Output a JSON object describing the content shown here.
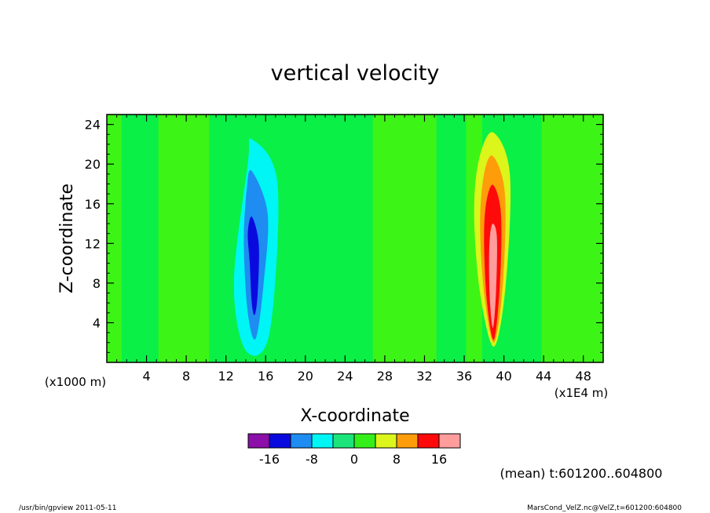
{
  "chart_data": {
    "type": "contour",
    "title": "vertical velocity",
    "xlabel": "X-coordinate",
    "ylabel": "Z-coordinate",
    "x_scale_note": "(x1000 m)",
    "x_scale_note_right": "(x1E4 m)",
    "xlim": [
      0,
      50
    ],
    "ylim": [
      0,
      25
    ],
    "x_ticks": [
      4,
      8,
      12,
      16,
      20,
      24,
      28,
      32,
      36,
      40,
      44,
      48
    ],
    "y_ticks": [
      4,
      8,
      12,
      16,
      20,
      24
    ],
    "colorbar": {
      "colors": [
        "#8b0fa8",
        "#0a0adf",
        "#1e8cf0",
        "#00f5f5",
        "#1be47a",
        "#35ef1a",
        "#dcf51a",
        "#ff9c0a",
        "#ff0a0a",
        "#ff9c9c"
      ],
      "tick_labels": [
        "-16",
        "-8",
        "0",
        "8",
        "16"
      ],
      "tick_at_boundary": [
        1,
        3,
        5,
        7,
        9
      ]
    },
    "background_level_color": "#0af046",
    "light_band_color": "#3cf516",
    "light_bands": [
      [
        0,
        1.5
      ],
      [
        5.2,
        10.3
      ],
      [
        26.8,
        33.2
      ],
      [
        36.2,
        37.8
      ],
      [
        43.8,
        50
      ]
    ],
    "features": [
      {
        "name": "downdraft",
        "center_x": 14.8,
        "levels": [
          {
            "color": "#00f5f5",
            "x": [
              14.6,
              17.2,
              16.4,
              14.0,
              12.8,
              14.2,
              14.6
            ],
            "y": [
              22.5,
              18.0,
              3.0,
              1.2,
              8.0,
              20.0,
              22.5
            ]
          },
          {
            "color": "#1e8cf0",
            "x": [
              14.6,
              16.2,
              15.8,
              15.0,
              14.2,
              13.8,
              14.1,
              14.6
            ],
            "y": [
              19.3,
              15.0,
              8.0,
              2.4,
              5.0,
              12.0,
              17.5,
              19.3
            ]
          },
          {
            "color": "#0a0adf",
            "x": [
              14.6,
              15.3,
              15.2,
              14.9,
              14.6,
              14.4,
              14.2,
              14.6
            ],
            "y": [
              14.7,
              12.0,
              7.0,
              4.8,
              6.0,
              10.0,
              13.0,
              14.7
            ]
          }
        ]
      },
      {
        "name": "updraft",
        "center_x": 38.9,
        "levels": [
          {
            "color": "#dcf51a",
            "x": [
              38.9,
              40.6,
              40.2,
              39.0,
              37.6,
              37.0,
              37.5,
              38.9
            ],
            "y": [
              23.2,
              19.0,
              8.0,
              1.6,
              7.0,
              15.0,
              20.5,
              23.2
            ]
          },
          {
            "color": "#ff9c0a",
            "x": [
              38.9,
              40.1,
              39.9,
              39.0,
              38.0,
              37.6,
              38.0,
              38.9
            ],
            "y": [
              20.8,
              17.0,
              8.0,
              2.0,
              7.0,
              14.0,
              19.0,
              20.8
            ]
          },
          {
            "color": "#ff0a0a",
            "x": [
              38.9,
              39.7,
              39.6,
              39.0,
              38.3,
              38.0,
              38.2,
              38.9
            ],
            "y": [
              17.9,
              15.0,
              8.0,
              2.3,
              6.0,
              12.0,
              16.0,
              17.9
            ]
          },
          {
            "color": "#ff9c9c",
            "x": [
              38.9,
              39.3,
              39.2,
              38.9,
              38.6,
              38.5,
              38.6,
              38.9
            ],
            "y": [
              14.0,
              12.5,
              7.0,
              3.5,
              6.0,
              10.0,
              12.8,
              14.0
            ]
          }
        ]
      }
    ]
  },
  "annotations": {
    "mean_label": "(mean) t:601200..604800",
    "footer_left": "/usr/bin/gpview  2011-05-11",
    "footer_right": "MarsCond_VelZ.nc@VelZ,t=601200:604800"
  }
}
